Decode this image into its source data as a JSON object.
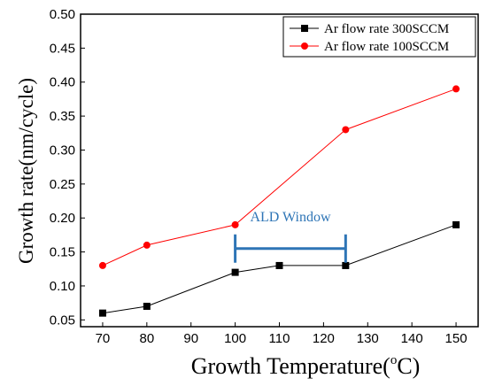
{
  "chart_data": {
    "type": "line",
    "title": "",
    "xlabel": "Growth Temperature(",
    "xlabel_super": "o",
    "xlabel_unit": "C)",
    "ylabel": "Growth rate(nm/cycle)",
    "xlim": [
      65,
      155
    ],
    "ylim": [
      0.04,
      0.5
    ],
    "xticks": [
      70,
      80,
      90,
      100,
      110,
      120,
      130,
      140,
      150
    ],
    "xtick_labels": [
      "70",
      "80",
      "90",
      "100",
      "110",
      "120",
      "130",
      "140",
      "150"
    ],
    "yticks": [
      0.05,
      0.1,
      0.15,
      0.2,
      0.25,
      0.3,
      0.35,
      0.4,
      0.45,
      0.5
    ],
    "ytick_labels": [
      "0.05",
      "0.10",
      "0.15",
      "0.20",
      "0.25",
      "0.30",
      "0.35",
      "0.40",
      "0.45",
      "0.50"
    ],
    "grid": false,
    "legend_position": "top-right",
    "series": [
      {
        "name": "Ar flow rate 300SCCM",
        "color": "#000000",
        "marker": "square",
        "x": [
          70,
          80,
          100,
          110,
          125,
          150
        ],
        "y": [
          0.06,
          0.07,
          0.12,
          0.13,
          0.13,
          0.19
        ]
      },
      {
        "name": "Ar flow rate 100SCCM",
        "color": "#ff0000",
        "marker": "circle",
        "x": [
          70,
          80,
          100,
          125,
          150
        ],
        "y": [
          0.13,
          0.16,
          0.19,
          0.33,
          0.39
        ]
      }
    ],
    "annotation": {
      "text": "ALD Window",
      "x_start": 100,
      "x_end": 125,
      "y": 0.155,
      "color": "#2e75b6"
    }
  }
}
